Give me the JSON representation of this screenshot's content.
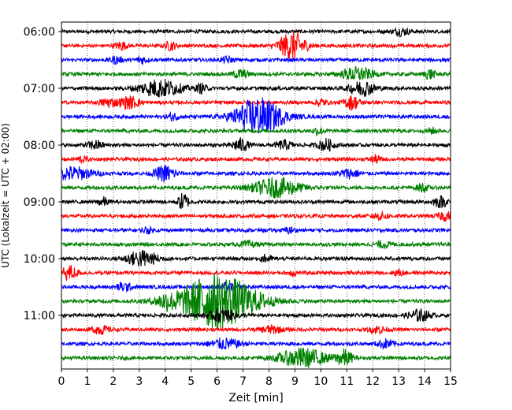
{
  "chart_data": {
    "type": "line",
    "subtype": "helicorder",
    "xlabel": "Zeit  [min]",
    "ylabel": "UTC (Lokalzeit = UTC + 02:00)",
    "xlim": [
      0,
      15
    ],
    "x_ticks": [
      "0",
      "1",
      "2",
      "3",
      "4",
      "5",
      "6",
      "7",
      "8",
      "9",
      "10",
      "11",
      "12",
      "13",
      "14",
      "15"
    ],
    "y_tick_labels": [
      "06:00",
      "07:00",
      "08:00",
      "09:00",
      "10:00",
      "11:00"
    ],
    "grid": "vertical dotted",
    "trace_colors": [
      "#000000",
      "#ff0000",
      "#0000ff",
      "#008000"
    ],
    "rows": [
      {
        "start": "06:00",
        "color": "#000000",
        "events": [
          {
            "t": 13.1,
            "amp": 0.5,
            "dur": 0.3
          }
        ]
      },
      {
        "start": "06:15",
        "color": "#ff0000",
        "events": [
          {
            "t": 8.9,
            "amp": 2.0,
            "dur": 0.5
          },
          {
            "t": 2.3,
            "amp": 0.6,
            "dur": 0.2
          },
          {
            "t": 4.2,
            "amp": 0.6,
            "dur": 0.2
          }
        ]
      },
      {
        "start": "06:30",
        "color": "#0000ff",
        "events": [
          {
            "t": 2.1,
            "amp": 0.5,
            "dur": 0.2
          },
          {
            "t": 3.1,
            "amp": 0.5,
            "dur": 0.2
          },
          {
            "t": 6.4,
            "amp": 0.4,
            "dur": 0.2
          }
        ]
      },
      {
        "start": "06:45",
        "color": "#008000",
        "events": [
          {
            "t": 6.9,
            "amp": 0.6,
            "dur": 0.3
          },
          {
            "t": 11.4,
            "amp": 0.9,
            "dur": 0.6
          },
          {
            "t": 14.2,
            "amp": 0.7,
            "dur": 0.2
          }
        ]
      },
      {
        "start": "07:00",
        "color": "#000000",
        "events": [
          {
            "t": 3.8,
            "amp": 1.2,
            "dur": 0.8
          },
          {
            "t": 11.6,
            "amp": 1.0,
            "dur": 0.5
          },
          {
            "t": 5.4,
            "amp": 0.6,
            "dur": 0.2
          }
        ]
      },
      {
        "start": "07:15",
        "color": "#ff0000",
        "events": [
          {
            "t": 1.8,
            "amp": 0.6,
            "dur": 0.3
          },
          {
            "t": 2.6,
            "amp": 0.8,
            "dur": 0.4
          },
          {
            "t": 11.2,
            "amp": 0.9,
            "dur": 0.3
          },
          {
            "t": 10.0,
            "amp": 0.5,
            "dur": 0.2
          }
        ]
      },
      {
        "start": "07:30",
        "color": "#0000ff",
        "events": [
          {
            "t": 7.6,
            "amp": 2.6,
            "dur": 0.9
          },
          {
            "t": 4.3,
            "amp": 0.5,
            "dur": 0.2
          }
        ]
      },
      {
        "start": "07:45",
        "color": "#008000",
        "events": [
          {
            "t": 9.9,
            "amp": 0.5,
            "dur": 0.2
          },
          {
            "t": 14.3,
            "amp": 0.4,
            "dur": 0.2
          }
        ]
      },
      {
        "start": "08:00",
        "color": "#000000",
        "events": [
          {
            "t": 1.3,
            "amp": 0.6,
            "dur": 0.3
          },
          {
            "t": 6.9,
            "amp": 0.9,
            "dur": 0.3
          },
          {
            "t": 8.6,
            "amp": 0.6,
            "dur": 0.3
          },
          {
            "t": 10.2,
            "amp": 0.8,
            "dur": 0.3
          }
        ]
      },
      {
        "start": "08:15",
        "color": "#ff0000",
        "events": [
          {
            "t": 0.8,
            "amp": 0.4,
            "dur": 0.2
          },
          {
            "t": 12.1,
            "amp": 0.5,
            "dur": 0.2
          }
        ]
      },
      {
        "start": "08:30",
        "color": "#0000ff",
        "events": [
          {
            "t": 0.4,
            "amp": 0.9,
            "dur": 0.8
          },
          {
            "t": 4.0,
            "amp": 1.1,
            "dur": 0.4
          },
          {
            "t": 11.1,
            "amp": 0.6,
            "dur": 0.4
          }
        ]
      },
      {
        "start": "08:45",
        "color": "#008000",
        "events": [
          {
            "t": 8.3,
            "amp": 1.3,
            "dur": 0.9
          },
          {
            "t": 13.9,
            "amp": 0.6,
            "dur": 0.2
          }
        ]
      },
      {
        "start": "09:00",
        "color": "#000000",
        "events": [
          {
            "t": 1.6,
            "amp": 0.6,
            "dur": 0.2
          },
          {
            "t": 4.7,
            "amp": 1.2,
            "dur": 0.2
          },
          {
            "t": 14.6,
            "amp": 0.7,
            "dur": 0.3
          }
        ]
      },
      {
        "start": "09:15",
        "color": "#ff0000",
        "events": [
          {
            "t": 12.3,
            "amp": 0.5,
            "dur": 0.3
          },
          {
            "t": 14.8,
            "amp": 0.6,
            "dur": 0.3
          }
        ]
      },
      {
        "start": "09:30",
        "color": "#0000ff",
        "events": [
          {
            "t": 3.3,
            "amp": 0.4,
            "dur": 0.2
          },
          {
            "t": 8.8,
            "amp": 0.4,
            "dur": 0.2
          }
        ]
      },
      {
        "start": "09:45",
        "color": "#008000",
        "events": [
          {
            "t": 7.2,
            "amp": 0.4,
            "dur": 0.3
          },
          {
            "t": 12.4,
            "amp": 0.4,
            "dur": 0.3
          }
        ]
      },
      {
        "start": "10:00",
        "color": "#000000",
        "events": [
          {
            "t": 3.1,
            "amp": 1.1,
            "dur": 0.6
          },
          {
            "t": 7.9,
            "amp": 0.5,
            "dur": 0.2
          }
        ]
      },
      {
        "start": "10:15",
        "color": "#ff0000",
        "events": [
          {
            "t": 0.3,
            "amp": 1.0,
            "dur": 0.3
          },
          {
            "t": 8.9,
            "amp": 0.4,
            "dur": 0.2
          },
          {
            "t": 13.0,
            "amp": 0.4,
            "dur": 0.2
          }
        ]
      },
      {
        "start": "10:30",
        "color": "#0000ff",
        "events": [
          {
            "t": 2.4,
            "amp": 0.6,
            "dur": 0.3
          },
          {
            "t": 6.4,
            "amp": 0.5,
            "dur": 0.3
          }
        ]
      },
      {
        "start": "10:45",
        "color": "#008000",
        "events": [
          {
            "t": 6.0,
            "amp": 3.8,
            "dur": 1.5
          },
          {
            "t": 4.0,
            "amp": 0.6,
            "dur": 0.3
          }
        ]
      },
      {
        "start": "11:00",
        "color": "#000000",
        "events": [
          {
            "t": 6.2,
            "amp": 0.9,
            "dur": 0.5
          },
          {
            "t": 13.8,
            "amp": 0.8,
            "dur": 0.4
          }
        ]
      },
      {
        "start": "11:15",
        "color": "#ff0000",
        "events": [
          {
            "t": 1.5,
            "amp": 0.6,
            "dur": 0.3
          },
          {
            "t": 8.1,
            "amp": 0.5,
            "dur": 0.4
          },
          {
            "t": 12.2,
            "amp": 0.5,
            "dur": 0.3
          }
        ]
      },
      {
        "start": "11:30",
        "color": "#0000ff",
        "events": [
          {
            "t": 6.3,
            "amp": 0.7,
            "dur": 0.6
          },
          {
            "t": 12.5,
            "amp": 0.6,
            "dur": 0.3
          }
        ]
      },
      {
        "start": "11:45",
        "color": "#008000",
        "events": [
          {
            "t": 9.3,
            "amp": 1.3,
            "dur": 0.9
          },
          {
            "t": 10.9,
            "amp": 1.1,
            "dur": 0.3
          }
        ]
      }
    ]
  }
}
